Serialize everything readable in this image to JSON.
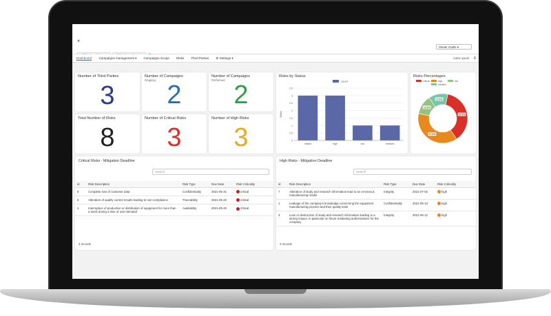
{
  "user": "Olivier Guilts",
  "tabs": [
    "POC - Smart Global",
    "POC - Smart Global"
  ],
  "nav": [
    "Dashboard",
    "Campaigns management",
    "Campaigns Scope",
    "Risks",
    "Third Parties",
    "Settings"
  ],
  "admin": "Admin panel",
  "kpis": [
    {
      "title": "Number of Third Parties",
      "sub": "",
      "value": "3",
      "color": "#2f3a8f"
    },
    {
      "title": "Number of Campaigns",
      "sub": "Ongoing",
      "value": "2",
      "color": "#2a6fb0"
    },
    {
      "title": "Number of Campaigns",
      "sub": "Performed",
      "value": "2",
      "color": "#2e9e49"
    },
    {
      "title": "Total Number of Risks",
      "sub": "",
      "value": "8",
      "color": "#222222"
    },
    {
      "title": "Number of Critical Risks",
      "sub": "",
      "value": "3",
      "color": "#d93028"
    },
    {
      "title": "Number of High Risks",
      "sub": "",
      "value": "3",
      "color": "#e8a91e"
    }
  ],
  "chart_data": [
    {
      "type": "bar",
      "title": "Risks by Status",
      "categories": [
        "critical",
        "high",
        "low",
        "medium"
      ],
      "values": [
        3,
        3,
        1,
        1
      ],
      "legend": "count",
      "ylabel": "Risks",
      "ylim": [
        0,
        3.5
      ]
    },
    {
      "type": "pie",
      "title": "Risks Percentages",
      "labels": [
        "critical",
        "high",
        "low",
        "medium"
      ],
      "values": [
        37.5,
        37.5,
        12.5,
        12.5
      ],
      "value_labels": [
        "37.5%",
        "37.5%",
        "12.5%",
        "12.5%"
      ],
      "colors": [
        "#d93028",
        "#e8891e",
        "#93c47d",
        "#76c6a8"
      ]
    }
  ],
  "critical": {
    "title": "Critical Risks - Mitigation Deadline",
    "search": "Search",
    "headers": [
      "id",
      "Risk Description",
      "Risk Type",
      "Due Date",
      "Risk Criticality"
    ],
    "rows": [
      [
        "9",
        "Complete loss of customer data",
        "Confidentiality",
        "2021-05-31",
        "critical"
      ],
      [
        "5",
        "Alteration of quality control results leading to non-compliance",
        "Traceability",
        "2021-05-20",
        "critical"
      ],
      [
        "4",
        "Interruption of production or distribution of equipment for more than a week during a time of over-demand",
        "Availability",
        "2021-05-20",
        "critical"
      ]
    ],
    "footer": "3 records"
  },
  "high": {
    "title": "High Risks - Mitigation Deadline",
    "search": "Search",
    "headers": [
      "id",
      "Risk Description",
      "Risk Type",
      "Due Date",
      "Risk Criticality"
    ],
    "rows": [
      [
        "7",
        "Alteration of study and research information lead to an erroneous manufacturing model",
        "Integrity",
        "2021-07-02",
        "high"
      ],
      [
        "1",
        "Leakage of the company's knowledge concerning the equipment manufacturing process and their quality tests",
        "Confidentiality",
        "2021-05-13",
        "high"
      ],
      [
        "3",
        "Loss or destruction of study and research information leading to a strong impact, in particular on future marketing authorizations for the company",
        "Integrity",
        "2021-05-12",
        "high"
      ]
    ],
    "footer": "3 records"
  }
}
